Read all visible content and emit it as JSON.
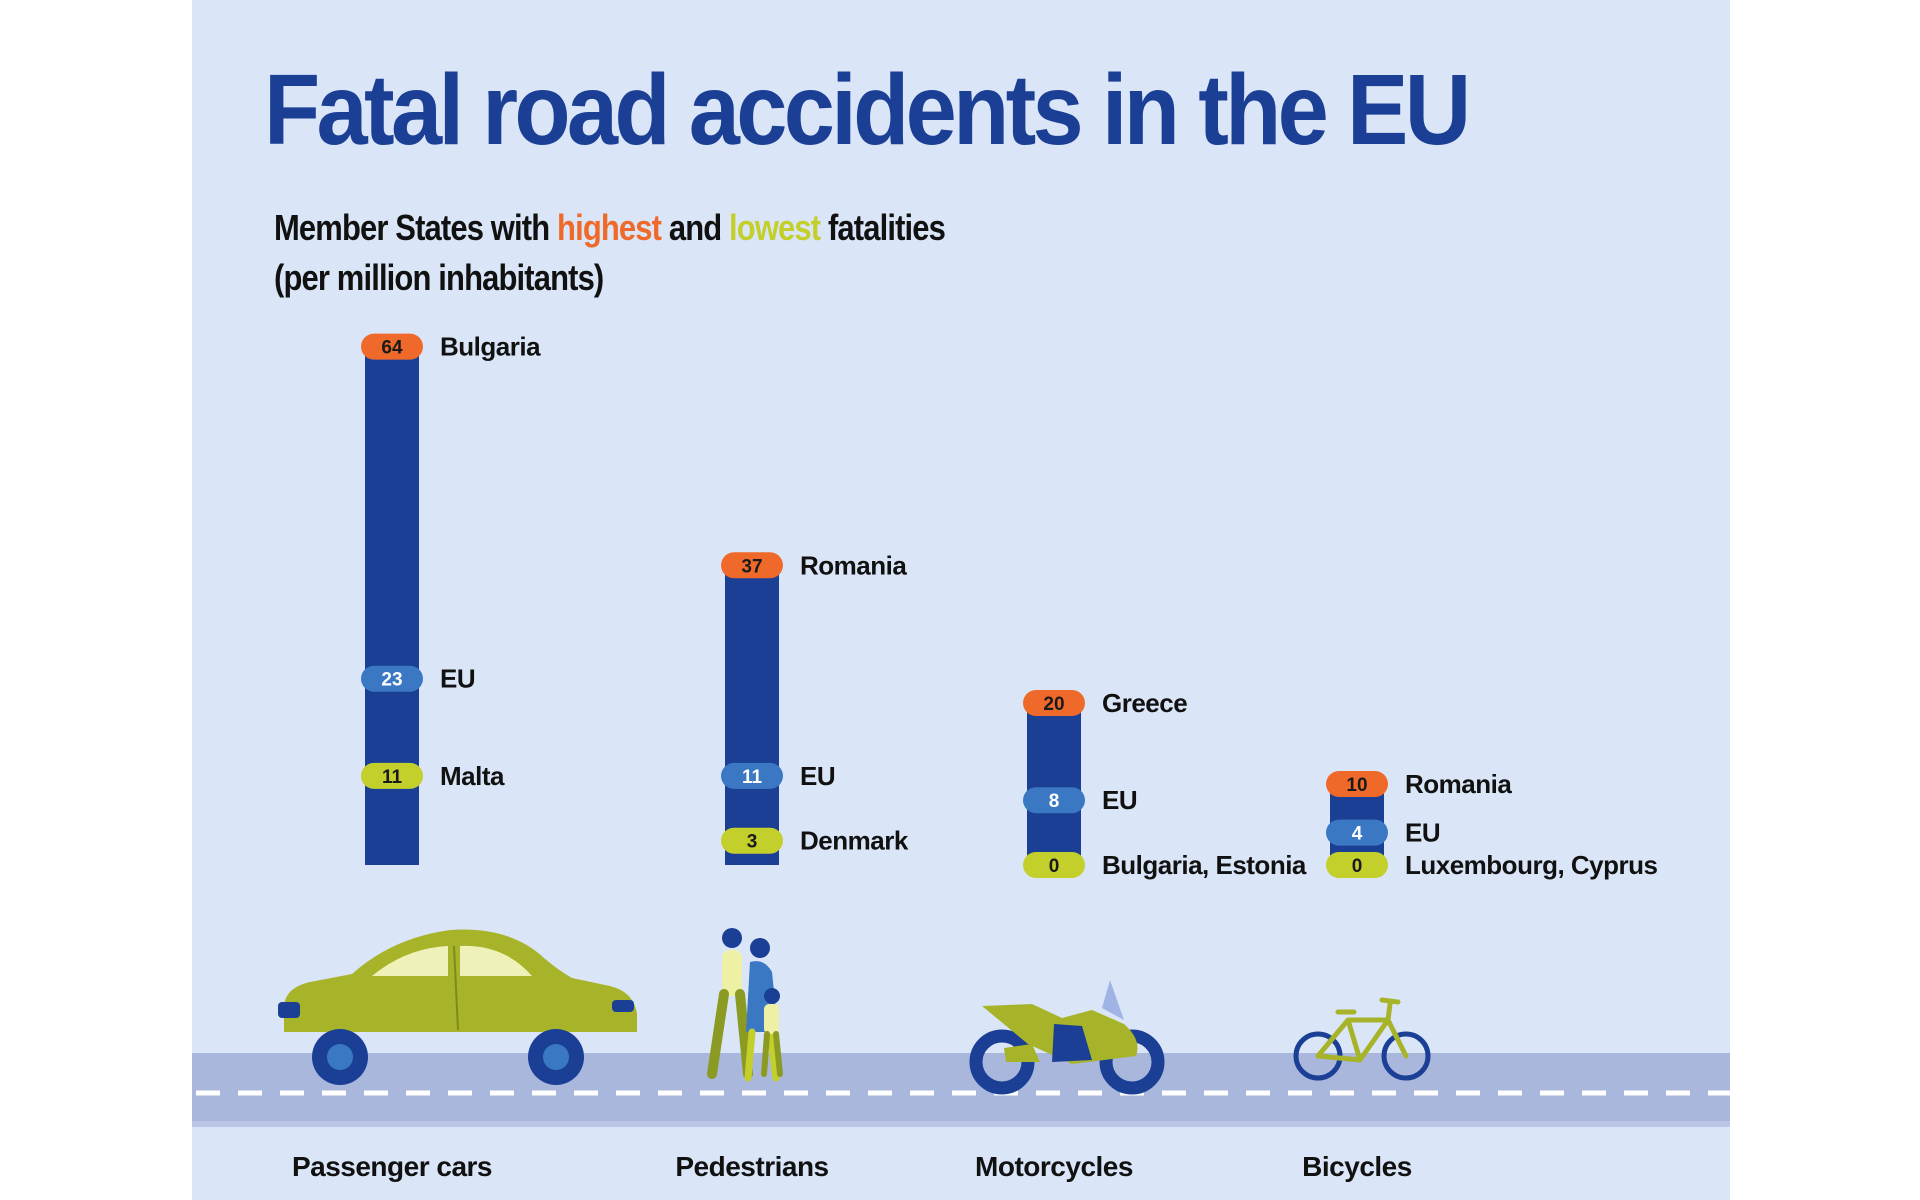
{
  "title": "Fatal road accidents in the EU",
  "subtitle": {
    "prefix": "Member States with ",
    "highest": "highest",
    "middle": " and ",
    "lowest": "lowest",
    "suffix": " fatalities",
    "line2": "(per million inhabitants)"
  },
  "colors": {
    "background": "#dae6f7",
    "bar": "#1b3f95",
    "highest": "#ef6a2a",
    "eu": "#3a78c4",
    "lowest": "#c3cf2a",
    "title": "#1b3f95"
  },
  "chart_data": {
    "type": "bar",
    "title": "Fatal road accidents in the EU",
    "categories": [
      "Passenger cars",
      "Pedestrians",
      "Motorcycles",
      "Bicycles"
    ],
    "series": [
      {
        "name": "highest",
        "values": [
          64,
          37,
          20,
          10
        ],
        "labels": [
          "Bulgaria",
          "Romania",
          "Greece",
          "Romania"
        ]
      },
      {
        "name": "EU",
        "values": [
          23,
          11,
          8,
          4
        ],
        "labels": [
          "EU",
          "EU",
          "EU",
          "EU"
        ]
      },
      {
        "name": "lowest",
        "values": [
          11,
          3,
          0,
          0
        ],
        "labels": [
          "Malta",
          "Denmark",
          "Bulgaria, Estonia",
          "Luxembourg, Cyprus"
        ]
      }
    ],
    "icons": [
      "car-icon",
      "pedestrians-icon",
      "motorcycle-icon",
      "bicycle-icon"
    ]
  }
}
